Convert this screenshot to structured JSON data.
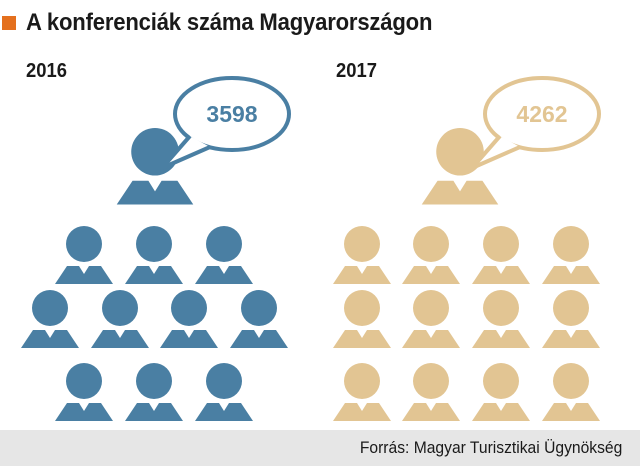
{
  "title": "A konferenciák száma Magyarországon",
  "source": "Forrás: Magyar Turisztikai Ügynökség",
  "colors": {
    "2016": "#4a7fa3",
    "2017": "#e2c593",
    "accent": "#e4701e"
  },
  "chart_data": {
    "type": "pictograph",
    "title": "A konferenciák száma Magyarországon",
    "categories": [
      "2016",
      "2017"
    ],
    "values": [
      3598,
      4262
    ]
  }
}
